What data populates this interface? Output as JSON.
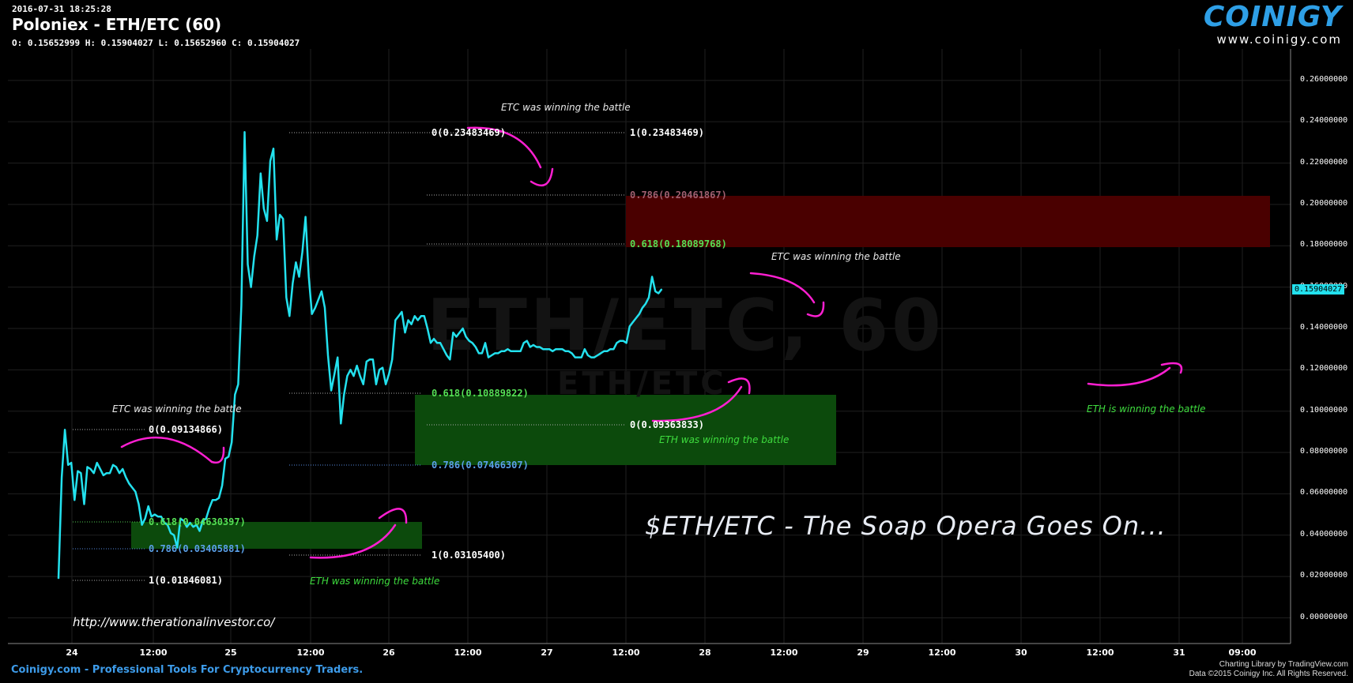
{
  "header": {
    "date": "2016-07-31 18:25:28",
    "title": "Poloniex - ETH/ETC (60)",
    "ohlc": "O: 0.15652999 H: 0.15904027 L: 0.15652960 C: 0.15904027"
  },
  "logo": {
    "word": "COINIGY",
    "url": "www.coinigy.com"
  },
  "footer": {
    "left": "Coinigy.com - Professional Tools For Cryptocurrency Traders.",
    "right_line1": "Charting Library by TradingView.com",
    "right_line2": "Data ©2015 Coinigy Inc. All Rights Reserved."
  },
  "watermark": {
    "main": "ETH/ETC, 60",
    "sub": "ETH/ETC"
  },
  "url_note": "http://www.therationalinvestor.co/",
  "big_title": "$ETH/ETC - The Soap Opera Goes On...",
  "current_price": "0.15904027",
  "colors": {
    "line": "#23e1ee",
    "annotation": "#ff1fd2",
    "zone_red": "#4a0000",
    "zone_green": "#0c4a0c",
    "fib_green": "#55e055",
    "fib_blue": "#5aa0e8",
    "fib_red": "#a06070"
  },
  "chart_data": {
    "type": "line",
    "title": "Poloniex - ETH/ETC (60)",
    "xlabel": "",
    "ylabel": "",
    "ylim": [
      -0.01,
      0.27
    ],
    "grid": true,
    "y_ticks": [
      "0.26000000",
      "0.24000000",
      "0.22000000",
      "0.20000000",
      "0.18000000",
      "0.16000000",
      "0.14000000",
      "0.12000000",
      "0.10000000",
      "0.08000000",
      "0.06000000",
      "0.04000000",
      "0.02000000",
      "0.00000000"
    ],
    "x_ticks": [
      "24",
      "12:00",
      "25",
      "12:00",
      "26",
      "12:00",
      "27",
      "12:00",
      "28",
      "12:00",
      "29",
      "12:00",
      "30",
      "12:00",
      "31",
      "09:00"
    ],
    "series": [
      {
        "values": [
          [
            0.0,
            0.019
          ],
          [
            0.2,
            0.068
          ],
          [
            0.4,
            0.091
          ],
          [
            0.6,
            0.074
          ],
          [
            0.8,
            0.075
          ],
          [
            1.0,
            0.057
          ],
          [
            1.2,
            0.071
          ],
          [
            1.4,
            0.07
          ],
          [
            1.6,
            0.055
          ],
          [
            1.8,
            0.073
          ],
          [
            2.0,
            0.072
          ],
          [
            2.2,
            0.07
          ],
          [
            2.4,
            0.075
          ],
          [
            2.6,
            0.072
          ],
          [
            2.8,
            0.069
          ],
          [
            3.0,
            0.07
          ],
          [
            3.2,
            0.07
          ],
          [
            3.4,
            0.074
          ],
          [
            3.6,
            0.073
          ],
          [
            3.8,
            0.07
          ],
          [
            4.0,
            0.072
          ],
          [
            4.2,
            0.068
          ],
          [
            4.4,
            0.065
          ],
          [
            4.6,
            0.063
          ],
          [
            4.8,
            0.061
          ],
          [
            5.0,
            0.055
          ],
          [
            5.2,
            0.045
          ],
          [
            5.4,
            0.048
          ],
          [
            5.6,
            0.054
          ],
          [
            5.8,
            0.049
          ],
          [
            6.0,
            0.05
          ],
          [
            6.2,
            0.049
          ],
          [
            6.4,
            0.049
          ],
          [
            6.6,
            0.046
          ],
          [
            6.8,
            0.045
          ],
          [
            7.0,
            0.041
          ],
          [
            7.2,
            0.04
          ],
          [
            7.4,
            0.034
          ],
          [
            7.6,
            0.048
          ],
          [
            7.8,
            0.047
          ],
          [
            8.0,
            0.044
          ],
          [
            8.2,
            0.046
          ],
          [
            8.4,
            0.044
          ],
          [
            8.6,
            0.045
          ],
          [
            8.8,
            0.042
          ],
          [
            9.0,
            0.047
          ],
          [
            9.2,
            0.048
          ],
          [
            9.4,
            0.053
          ],
          [
            9.6,
            0.057
          ],
          [
            9.8,
            0.057
          ],
          [
            10.0,
            0.058
          ],
          [
            10.2,
            0.064
          ],
          [
            10.4,
            0.077
          ],
          [
            10.6,
            0.078
          ],
          [
            10.8,
            0.085
          ],
          [
            11.0,
            0.108
          ],
          [
            11.2,
            0.113
          ],
          [
            11.4,
            0.151
          ],
          [
            11.6,
            0.235
          ],
          [
            11.8,
            0.171
          ],
          [
            12.0,
            0.16
          ],
          [
            12.2,
            0.175
          ],
          [
            12.4,
            0.185
          ],
          [
            12.6,
            0.215
          ],
          [
            12.8,
            0.198
          ],
          [
            13.0,
            0.192
          ],
          [
            13.2,
            0.221
          ],
          [
            13.4,
            0.227
          ],
          [
            13.6,
            0.183
          ],
          [
            13.8,
            0.195
          ],
          [
            14.0,
            0.193
          ],
          [
            14.2,
            0.155
          ],
          [
            14.4,
            0.146
          ],
          [
            14.6,
            0.162
          ],
          [
            14.8,
            0.172
          ],
          [
            15.0,
            0.165
          ],
          [
            15.2,
            0.177
          ],
          [
            15.4,
            0.194
          ],
          [
            15.6,
            0.165
          ],
          [
            15.8,
            0.147
          ],
          [
            16.0,
            0.15
          ],
          [
            16.2,
            0.154
          ],
          [
            16.4,
            0.158
          ],
          [
            16.6,
            0.15
          ],
          [
            16.8,
            0.127
          ],
          [
            17.0,
            0.11
          ],
          [
            17.2,
            0.118
          ],
          [
            17.4,
            0.126
          ],
          [
            17.6,
            0.094
          ],
          [
            17.8,
            0.108
          ],
          [
            18.0,
            0.117
          ],
          [
            18.2,
            0.12
          ],
          [
            18.4,
            0.117
          ],
          [
            18.6,
            0.122
          ],
          [
            18.8,
            0.117
          ],
          [
            19.0,
            0.113
          ],
          [
            19.2,
            0.124
          ],
          [
            19.4,
            0.125
          ],
          [
            19.6,
            0.125
          ],
          [
            19.8,
            0.113
          ],
          [
            20.0,
            0.12
          ],
          [
            20.2,
            0.121
          ],
          [
            20.4,
            0.113
          ],
          [
            20.6,
            0.118
          ],
          [
            20.8,
            0.125
          ],
          [
            21.0,
            0.144
          ],
          [
            21.2,
            0.146
          ],
          [
            21.4,
            0.148
          ],
          [
            21.6,
            0.138
          ],
          [
            21.8,
            0.144
          ],
          [
            22.0,
            0.142
          ],
          [
            22.2,
            0.146
          ],
          [
            22.4,
            0.144
          ],
          [
            22.6,
            0.146
          ],
          [
            22.8,
            0.146
          ],
          [
            23.0,
            0.14
          ],
          [
            23.2,
            0.133
          ],
          [
            23.4,
            0.135
          ],
          [
            23.6,
            0.133
          ],
          [
            23.8,
            0.133
          ],
          [
            24.0,
            0.13
          ],
          [
            24.2,
            0.127
          ],
          [
            24.4,
            0.125
          ],
          [
            24.6,
            0.138
          ],
          [
            24.8,
            0.136
          ],
          [
            25.0,
            0.138
          ],
          [
            25.2,
            0.14
          ],
          [
            25.4,
            0.136
          ],
          [
            25.6,
            0.134
          ],
          [
            25.8,
            0.133
          ],
          [
            26.0,
            0.131
          ],
          [
            26.2,
            0.128
          ],
          [
            26.4,
            0.128
          ],
          [
            26.6,
            0.133
          ],
          [
            26.8,
            0.126
          ],
          [
            27.0,
            0.127
          ],
          [
            27.2,
            0.128
          ],
          [
            27.4,
            0.128
          ],
          [
            27.6,
            0.129
          ],
          [
            27.8,
            0.129
          ],
          [
            28.0,
            0.13
          ],
          [
            28.2,
            0.129
          ],
          [
            28.4,
            0.129
          ],
          [
            28.6,
            0.129
          ],
          [
            28.8,
            0.129
          ],
          [
            29.0,
            0.133
          ],
          [
            29.2,
            0.134
          ],
          [
            29.4,
            0.131
          ],
          [
            29.6,
            0.132
          ],
          [
            29.8,
            0.131
          ],
          [
            30.0,
            0.131
          ],
          [
            30.2,
            0.13
          ],
          [
            30.4,
            0.13
          ],
          [
            30.6,
            0.13
          ],
          [
            30.8,
            0.129
          ],
          [
            31.0,
            0.13
          ],
          [
            31.2,
            0.13
          ],
          [
            31.4,
            0.13
          ],
          [
            31.6,
            0.129
          ],
          [
            31.8,
            0.129
          ],
          [
            32.0,
            0.128
          ],
          [
            32.2,
            0.126
          ],
          [
            32.4,
            0.126
          ],
          [
            32.6,
            0.126
          ],
          [
            32.8,
            0.13
          ],
          [
            33.0,
            0.127
          ],
          [
            33.2,
            0.126
          ],
          [
            33.4,
            0.126
          ],
          [
            33.6,
            0.127
          ],
          [
            33.8,
            0.128
          ],
          [
            34.0,
            0.129
          ],
          [
            34.2,
            0.129
          ],
          [
            34.4,
            0.13
          ],
          [
            34.6,
            0.13
          ],
          [
            34.8,
            0.133
          ],
          [
            35.0,
            0.134
          ],
          [
            35.2,
            0.134
          ],
          [
            35.4,
            0.133
          ],
          [
            35.6,
            0.141
          ],
          [
            35.8,
            0.143
          ],
          [
            36.0,
            0.145
          ],
          [
            36.2,
            0.147
          ],
          [
            36.4,
            0.15
          ],
          [
            36.6,
            0.152
          ],
          [
            36.8,
            0.155
          ],
          [
            37.0,
            0.165
          ],
          [
            37.2,
            0.158
          ],
          [
            37.4,
            0.157
          ],
          [
            37.6,
            0.159
          ]
        ]
      }
    ],
    "fib_levels": [
      {
        "label": "0(0.09134866)",
        "color": "white"
      },
      {
        "label": "0.618(0.04630397)",
        "color": "green"
      },
      {
        "label": "0.786(0.03405881)",
        "color": "blue"
      },
      {
        "label": "1(0.01846081)",
        "color": "white"
      },
      {
        "label": "0(0.23483469)",
        "color": "white"
      },
      {
        "label": "1(0.23483469)",
        "color": "white"
      },
      {
        "label": "1(0.03105400)",
        "color": "white"
      },
      {
        "label": "0.618(0.10889822)",
        "color": "green"
      },
      {
        "label": "0.786(0.07466307)",
        "color": "blue"
      },
      {
        "label": "0(0.09363833)",
        "color": "white"
      },
      {
        "label": "0.786(0.20461867)",
        "color": "red"
      },
      {
        "label": "0.618(0.18089768)",
        "color": "green"
      }
    ],
    "annotations": [
      {
        "text": "ETC was winning the battle",
        "color": "white"
      },
      {
        "text": "ETC was winning the battle",
        "color": "white"
      },
      {
        "text": "ETC was winning the battle",
        "color": "white"
      },
      {
        "text": "ETH was winning the battle",
        "color": "green"
      },
      {
        "text": "ETH was winning the battle",
        "color": "green"
      },
      {
        "text": "ETH is winning the battle",
        "color": "green"
      }
    ]
  }
}
